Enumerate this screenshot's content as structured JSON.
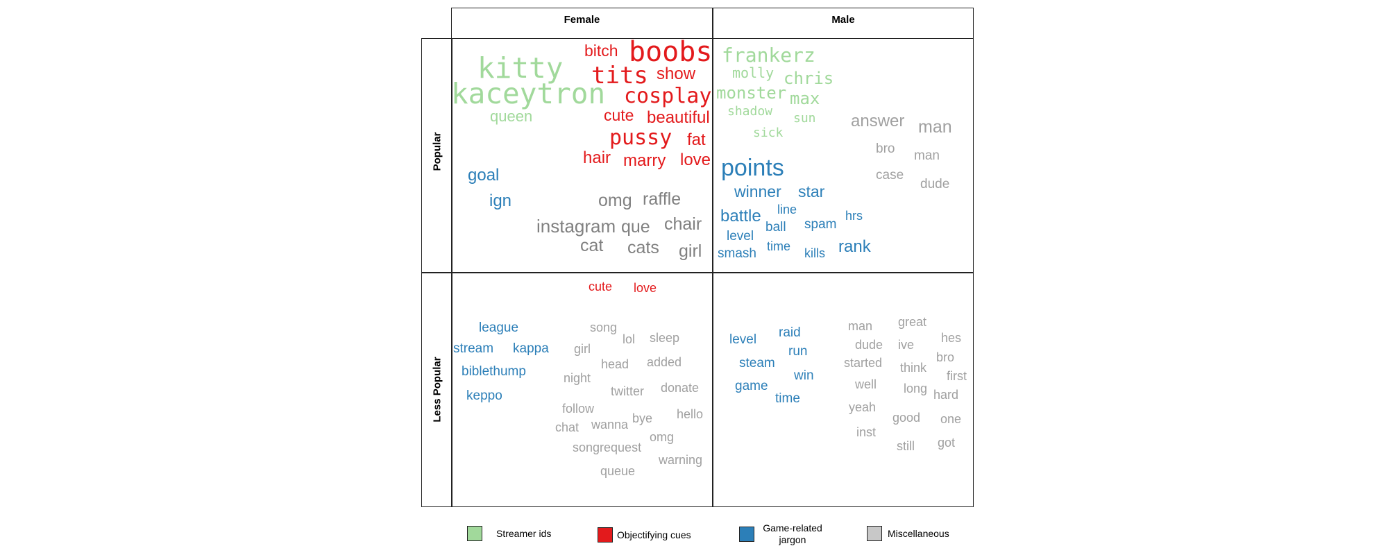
{
  "columns": [
    "Female",
    "Male"
  ],
  "rows": [
    "Popular",
    "Less Popular"
  ],
  "colors": {
    "streamer_ids": "#a1d99b",
    "objectifying": "#e31a1c",
    "game_jargon": "#2c7fb8",
    "misc": "#808080",
    "misc_light": "#a0a0a0"
  },
  "cells": {
    "female_popular": [
      {
        "text": "kitty",
        "cat": "streamer_ids"
      },
      {
        "text": "kaceytron",
        "cat": "streamer_ids"
      },
      {
        "text": "queen",
        "cat": "streamer_ids"
      },
      {
        "text": "bitch",
        "cat": "objectifying"
      },
      {
        "text": "boobs",
        "cat": "objectifying"
      },
      {
        "text": "tits",
        "cat": "objectifying"
      },
      {
        "text": "show",
        "cat": "objectifying"
      },
      {
        "text": "cosplay",
        "cat": "objectifying"
      },
      {
        "text": "cute",
        "cat": "objectifying"
      },
      {
        "text": "beautiful",
        "cat": "objectifying"
      },
      {
        "text": "pussy",
        "cat": "objectifying"
      },
      {
        "text": "fat",
        "cat": "objectifying"
      },
      {
        "text": "hair",
        "cat": "objectifying"
      },
      {
        "text": "marry",
        "cat": "objectifying"
      },
      {
        "text": "love",
        "cat": "objectifying"
      },
      {
        "text": "goal",
        "cat": "game_jargon"
      },
      {
        "text": "ign",
        "cat": "game_jargon"
      },
      {
        "text": "omg",
        "cat": "misc"
      },
      {
        "text": "raffle",
        "cat": "misc"
      },
      {
        "text": "instagram",
        "cat": "misc"
      },
      {
        "text": "que",
        "cat": "misc"
      },
      {
        "text": "chair",
        "cat": "misc"
      },
      {
        "text": "cat",
        "cat": "misc"
      },
      {
        "text": "cats",
        "cat": "misc"
      },
      {
        "text": "girl",
        "cat": "misc"
      }
    ],
    "male_popular": [
      {
        "text": "frankerz",
        "cat": "streamer_ids"
      },
      {
        "text": "molly",
        "cat": "streamer_ids"
      },
      {
        "text": "chris",
        "cat": "streamer_ids"
      },
      {
        "text": "monster",
        "cat": "streamer_ids"
      },
      {
        "text": "max",
        "cat": "streamer_ids"
      },
      {
        "text": "shadow",
        "cat": "streamer_ids"
      },
      {
        "text": "sun",
        "cat": "streamer_ids"
      },
      {
        "text": "sick",
        "cat": "streamer_ids"
      },
      {
        "text": "answer",
        "cat": "misc"
      },
      {
        "text": "man",
        "cat": "misc"
      },
      {
        "text": "bro",
        "cat": "misc"
      },
      {
        "text": "man",
        "cat": "misc"
      },
      {
        "text": "case",
        "cat": "misc"
      },
      {
        "text": "dude",
        "cat": "misc"
      },
      {
        "text": "points",
        "cat": "game_jargon"
      },
      {
        "text": "winner",
        "cat": "game_jargon"
      },
      {
        "text": "star",
        "cat": "game_jargon"
      },
      {
        "text": "battle",
        "cat": "game_jargon"
      },
      {
        "text": "line",
        "cat": "game_jargon"
      },
      {
        "text": "hrs",
        "cat": "game_jargon"
      },
      {
        "text": "ball",
        "cat": "game_jargon"
      },
      {
        "text": "spam",
        "cat": "game_jargon"
      },
      {
        "text": "level",
        "cat": "game_jargon"
      },
      {
        "text": "time",
        "cat": "game_jargon"
      },
      {
        "text": "rank",
        "cat": "game_jargon"
      },
      {
        "text": "smash",
        "cat": "game_jargon"
      },
      {
        "text": "kills",
        "cat": "game_jargon"
      }
    ],
    "female_less": [
      {
        "text": "cute",
        "cat": "objectifying"
      },
      {
        "text": "love",
        "cat": "objectifying"
      },
      {
        "text": "league",
        "cat": "game_jargon"
      },
      {
        "text": "stream",
        "cat": "game_jargon"
      },
      {
        "text": "kappa",
        "cat": "game_jargon"
      },
      {
        "text": "biblethump",
        "cat": "game_jargon"
      },
      {
        "text": "keppo",
        "cat": "game_jargon"
      },
      {
        "text": "song",
        "cat": "misc"
      },
      {
        "text": "lol",
        "cat": "misc"
      },
      {
        "text": "sleep",
        "cat": "misc"
      },
      {
        "text": "girl",
        "cat": "misc"
      },
      {
        "text": "head",
        "cat": "misc"
      },
      {
        "text": "added",
        "cat": "misc"
      },
      {
        "text": "night",
        "cat": "misc"
      },
      {
        "text": "twitter",
        "cat": "misc"
      },
      {
        "text": "donate",
        "cat": "misc"
      },
      {
        "text": "follow",
        "cat": "misc"
      },
      {
        "text": "chat",
        "cat": "misc"
      },
      {
        "text": "wanna",
        "cat": "misc"
      },
      {
        "text": "bye",
        "cat": "misc"
      },
      {
        "text": "hello",
        "cat": "misc"
      },
      {
        "text": "omg",
        "cat": "misc"
      },
      {
        "text": "songrequest",
        "cat": "misc"
      },
      {
        "text": "warning",
        "cat": "misc"
      },
      {
        "text": "queue",
        "cat": "misc"
      }
    ],
    "male_less": [
      {
        "text": "level",
        "cat": "game_jargon"
      },
      {
        "text": "raid",
        "cat": "game_jargon"
      },
      {
        "text": "run",
        "cat": "game_jargon"
      },
      {
        "text": "steam",
        "cat": "game_jargon"
      },
      {
        "text": "win",
        "cat": "game_jargon"
      },
      {
        "text": "game",
        "cat": "game_jargon"
      },
      {
        "text": "time",
        "cat": "game_jargon"
      },
      {
        "text": "man",
        "cat": "misc"
      },
      {
        "text": "great",
        "cat": "misc"
      },
      {
        "text": "hes",
        "cat": "misc"
      },
      {
        "text": "dude",
        "cat": "misc"
      },
      {
        "text": "ive",
        "cat": "misc"
      },
      {
        "text": "bro",
        "cat": "misc"
      },
      {
        "text": "started",
        "cat": "misc"
      },
      {
        "text": "think",
        "cat": "misc"
      },
      {
        "text": "first",
        "cat": "misc"
      },
      {
        "text": "well",
        "cat": "misc"
      },
      {
        "text": "long",
        "cat": "misc"
      },
      {
        "text": "hard",
        "cat": "misc"
      },
      {
        "text": "yeah",
        "cat": "misc"
      },
      {
        "text": "good",
        "cat": "misc"
      },
      {
        "text": "one",
        "cat": "misc"
      },
      {
        "text": "inst",
        "cat": "misc"
      },
      {
        "text": "still",
        "cat": "misc"
      },
      {
        "text": "got",
        "cat": "misc"
      }
    ]
  },
  "legend": [
    {
      "label": "Streamer ids",
      "color": "#a1d99b"
    },
    {
      "label": "Objectifying cues",
      "color": "#e31a1c"
    },
    {
      "label": "Game-related jargon",
      "color": "#2c7fb8"
    },
    {
      "label": "Miscellaneous",
      "color": "#c8c8c8"
    }
  ]
}
